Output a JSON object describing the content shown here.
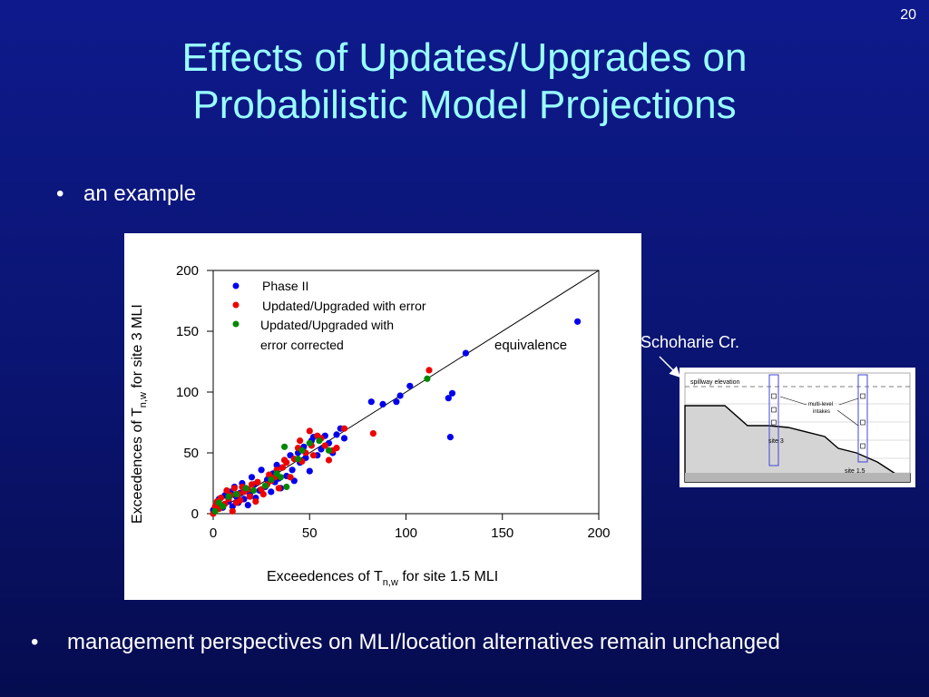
{
  "slide": {
    "number": "20",
    "title_line1": "Effects of Updates/Upgrades on",
    "title_line2": "Probabilistic Model Projections",
    "bullet1": "an example",
    "bullet2": "management perspectives on MLI/location alternatives remain unchanged",
    "bullet_char": "•",
    "colors": {
      "background": "#0a1470",
      "title": "#99ffff",
      "text": "#ffffff"
    }
  },
  "chart_data": {
    "type": "scatter",
    "xlabel_main": "Exceedences of T",
    "xlabel_sub": "n,w",
    "xlabel_tail": " for site 1.5 MLI",
    "ylabel_main": "Exceedences of T",
    "ylabel_sub": "n,w",
    "ylabel_tail": " for site 3 MLI",
    "xlim": [
      0,
      200
    ],
    "ylim": [
      0,
      200
    ],
    "xticks": [
      "0",
      "50",
      "100",
      "150",
      "200"
    ],
    "yticks": [
      "0",
      "50",
      "100",
      "150",
      "200"
    ],
    "grid": false,
    "legend_position": "top-left",
    "legend": {
      "phase2": "Phase II",
      "err": "Updated/Upgraded with error",
      "corr_line1": "Updated/Upgraded with",
      "corr_line2": "error corrected"
    },
    "annotation": "equivalence",
    "reference_line": [
      [
        0,
        0
      ],
      [
        200,
        200
      ]
    ],
    "series": [
      {
        "name": "Phase II",
        "color": "#0000ee",
        "points": [
          [
            0,
            3
          ],
          [
            2,
            8
          ],
          [
            3,
            12
          ],
          [
            5,
            5
          ],
          [
            6,
            15
          ],
          [
            8,
            10
          ],
          [
            9,
            18
          ],
          [
            10,
            6
          ],
          [
            11,
            22
          ],
          [
            12,
            14
          ],
          [
            13,
            9
          ],
          [
            14,
            17
          ],
          [
            15,
            25
          ],
          [
            16,
            12
          ],
          [
            17,
            20
          ],
          [
            18,
            7
          ],
          [
            19,
            16
          ],
          [
            20,
            30
          ],
          [
            21,
            24
          ],
          [
            22,
            13
          ],
          [
            24,
            19
          ],
          [
            25,
            36
          ],
          [
            27,
            22
          ],
          [
            28,
            28
          ],
          [
            30,
            18
          ],
          [
            31,
            33
          ],
          [
            32,
            26
          ],
          [
            33,
            40
          ],
          [
            34,
            29
          ],
          [
            35,
            21
          ],
          [
            36,
            38
          ],
          [
            37,
            44
          ],
          [
            38,
            31
          ],
          [
            40,
            48
          ],
          [
            41,
            36
          ],
          [
            42,
            27
          ],
          [
            44,
            50
          ],
          [
            45,
            42
          ],
          [
            47,
            55
          ],
          [
            48,
            46
          ],
          [
            50,
            35
          ],
          [
            51,
            60
          ],
          [
            52,
            63
          ],
          [
            54,
            48
          ],
          [
            56,
            53
          ],
          [
            58,
            64
          ],
          [
            60,
            58
          ],
          [
            62,
            50
          ],
          [
            64,
            65
          ],
          [
            66,
            70
          ],
          [
            68,
            62
          ],
          [
            82,
            92
          ],
          [
            88,
            90
          ],
          [
            95,
            92
          ],
          [
            97,
            97
          ],
          [
            102,
            105
          ],
          [
            122,
            95
          ],
          [
            123,
            63
          ],
          [
            124,
            99
          ],
          [
            131,
            132
          ],
          [
            189,
            158
          ]
        ]
      },
      {
        "name": "Updated/Upgraded with error",
        "color": "#ee0000",
        "points": [
          [
            0,
            0
          ],
          [
            1,
            6
          ],
          [
            2,
            10
          ],
          [
            3,
            4
          ],
          [
            4,
            13
          ],
          [
            6,
            8
          ],
          [
            7,
            19
          ],
          [
            8,
            12
          ],
          [
            9,
            15
          ],
          [
            10,
            2
          ],
          [
            11,
            21
          ],
          [
            12,
            9
          ],
          [
            13,
            16
          ],
          [
            14,
            11
          ],
          [
            15,
            22
          ],
          [
            16,
            18
          ],
          [
            18,
            20
          ],
          [
            19,
            14
          ],
          [
            20,
            24
          ],
          [
            22,
            10
          ],
          [
            23,
            26
          ],
          [
            25,
            20
          ],
          [
            26,
            16
          ],
          [
            28,
            24
          ],
          [
            29,
            32
          ],
          [
            30,
            27
          ],
          [
            32,
            30
          ],
          [
            33,
            36
          ],
          [
            34,
            21
          ],
          [
            36,
            38
          ],
          [
            37,
            44
          ],
          [
            38,
            42
          ],
          [
            40,
            30
          ],
          [
            42,
            45
          ],
          [
            44,
            54
          ],
          [
            45,
            60
          ],
          [
            46,
            43
          ],
          [
            48,
            50
          ],
          [
            50,
            68
          ],
          [
            51,
            56
          ],
          [
            52,
            48
          ],
          [
            54,
            64
          ],
          [
            56,
            62
          ],
          [
            58,
            56
          ],
          [
            60,
            44
          ],
          [
            62,
            52
          ],
          [
            64,
            54
          ],
          [
            68,
            70
          ],
          [
            83,
            66
          ],
          [
            112,
            118
          ]
        ]
      },
      {
        "name": "Updated/Upgraded with error corrected",
        "color": "#008800",
        "points": [
          [
            1,
            2
          ],
          [
            3,
            9
          ],
          [
            5,
            6
          ],
          [
            8,
            14
          ],
          [
            12,
            16
          ],
          [
            17,
            21
          ],
          [
            21,
            19
          ],
          [
            27,
            23
          ],
          [
            30,
            28
          ],
          [
            33,
            33
          ],
          [
            35,
            30
          ],
          [
            37,
            55
          ],
          [
            38,
            22
          ],
          [
            44,
            45
          ],
          [
            46,
            52
          ],
          [
            50,
            58
          ],
          [
            55,
            60
          ],
          [
            60,
            52
          ],
          [
            111,
            111
          ]
        ]
      }
    ]
  },
  "diagram": {
    "label": "Schoharie Cr.",
    "spillway": "spillway elevation",
    "intakes_line1": "multi-level",
    "intakes_line2": "intakes",
    "site3": "site 3",
    "site15": "site 1.5"
  }
}
